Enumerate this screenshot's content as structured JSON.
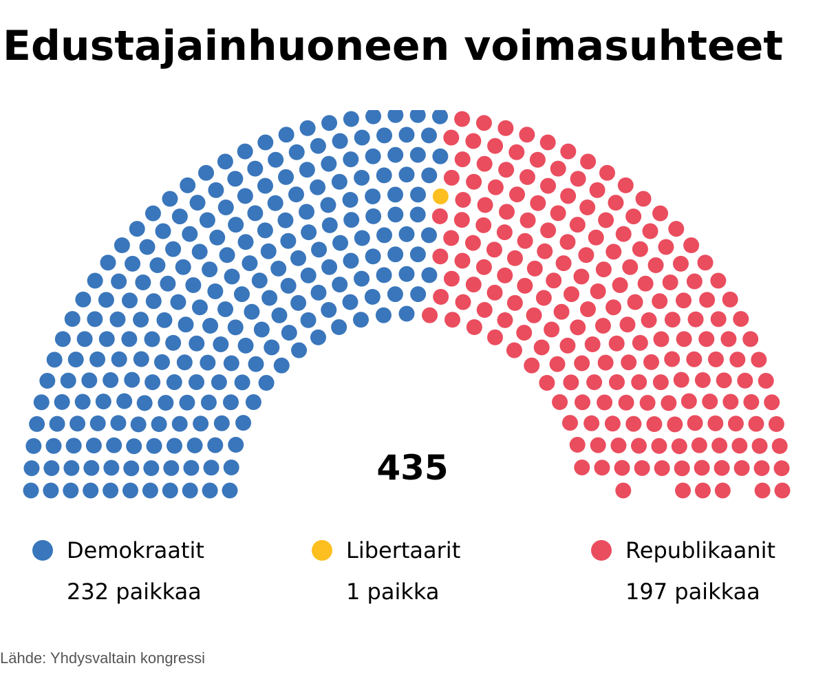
{
  "title": "Edustajainhuoneen voimasuhteet",
  "total_label": "435",
  "source": "Lähde: Yhdysvaltain kongressi",
  "parties": [
    {
      "name": "Demokraatit",
      "seats_label": "232 paikkaa",
      "color": "#3a76bb"
    },
    {
      "name": "Libertaarit",
      "seats_label": "1 paikka",
      "color": "#fcbf1f"
    },
    {
      "name": "Republikaanit",
      "seats_label": "197 paikkaa",
      "color": "#ea4d5e"
    }
  ],
  "chart_data": {
    "type": "parliament",
    "total_seats": 435,
    "series": [
      {
        "name": "Demokraatit",
        "value": 232,
        "color": "#3a76bb"
      },
      {
        "name": "Libertaarit",
        "value": 1,
        "color": "#fcbf1f"
      },
      {
        "name": "Republikaanit",
        "value": 197,
        "color": "#ea4d5e"
      }
    ],
    "legend_position": "bottom"
  }
}
